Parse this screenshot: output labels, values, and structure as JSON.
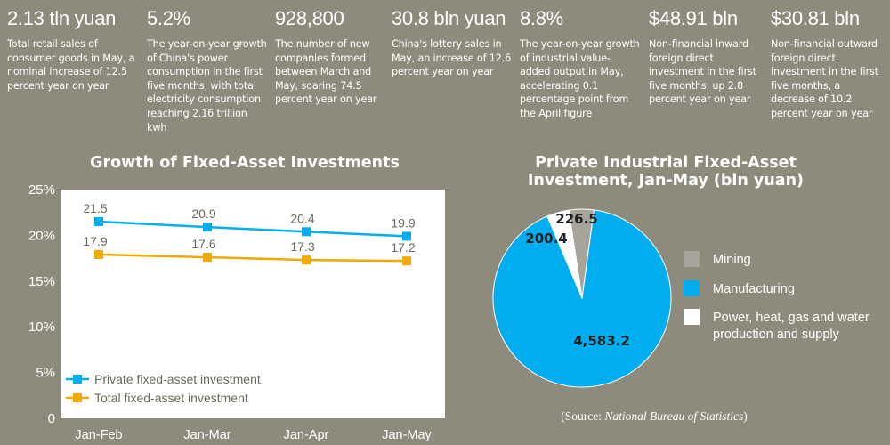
{
  "stats": [
    {
      "headline": "2.13 tln yuan",
      "desc": "Total retail sales of consumer goods in May, a nominal increase of 12.5 percent year on year"
    },
    {
      "headline": "5.2%",
      "desc": "The year-on-year growth of China's power consumption in the first five months, with total electricity consumption reaching 2.16 trillion kwh"
    },
    {
      "headline": "928,800",
      "desc": "The number of new companies formed between March and May, soaring 74.5 percent year on year"
    },
    {
      "headline": "30.8 bln yuan",
      "desc": "China's lottery sales in May, an increase of 12.6 percent year on year"
    },
    {
      "headline": "8.8%",
      "desc": "The year-on-year growth of industrial value-added output in May, accelerating 0.1 percentage point from the April figure"
    },
    {
      "headline": "$48.91 bln",
      "desc": "Non-financial inward foreign direct investment in the first five months, up 2.8 percent year on year"
    },
    {
      "headline": "$30.81 bln",
      "desc": "Non-financial outward foreign direct investment in the first five months, a decrease of 10.2 percent year on year"
    }
  ],
  "colors": {
    "blue": "#00aeef",
    "orange": "#f2a900",
    "gray": "#a7a59b",
    "white": "#ffffff",
    "background": "#8f8b7c"
  },
  "chart_data": [
    {
      "type": "line",
      "title": "Growth of Fixed-Asset Investments",
      "categories": [
        "Jan-Feb",
        "Jan-Mar",
        "Jan-Apr",
        "Jan-May"
      ],
      "yticks": [
        "0",
        "5%",
        "10%",
        "15%",
        "20%",
        "25%"
      ],
      "ylim": [
        0,
        25
      ],
      "series": [
        {
          "name": "Private fixed-asset investment",
          "values": [
            21.5,
            20.9,
            20.4,
            19.9
          ],
          "labels": [
            "21.5",
            "20.9",
            "20.4",
            "19.9"
          ],
          "color": "#00aeef"
        },
        {
          "name": "Total fixed-asset investment",
          "values": [
            17.9,
            17.6,
            17.3,
            17.2
          ],
          "labels": [
            "17.9",
            "17.6",
            "17.3",
            "17.2"
          ],
          "color": "#f2a900"
        }
      ],
      "legend": "bottom-left",
      "grid": false
    },
    {
      "type": "pie",
      "title": "Private Industrial Fixed-Asset Investment, Jan-May (bln yuan)",
      "slices": [
        {
          "name": "Mining",
          "value": 226.5,
          "label": "226.5",
          "color": "#a7a59b"
        },
        {
          "name": "Manufacturing",
          "value": 4583.2,
          "label": "4,583.2",
          "color": "#00aeef"
        },
        {
          "name": "Power, heat, gas and water production and supply",
          "value": 200.4,
          "label": "200.4",
          "color": "#ffffff"
        }
      ],
      "legend_lines": {
        "Mining": [
          "Mining"
        ],
        "Manufacturing": [
          "Manufacturing"
        ],
        "Power, heat, gas and water production and supply": [
          "Power, heat, gas and water",
          "production and supply"
        ]
      },
      "legend": "right"
    }
  ],
  "source": {
    "prefix": "(Source: ",
    "name": "National Bureau of Statistics",
    "suffix": ")"
  }
}
